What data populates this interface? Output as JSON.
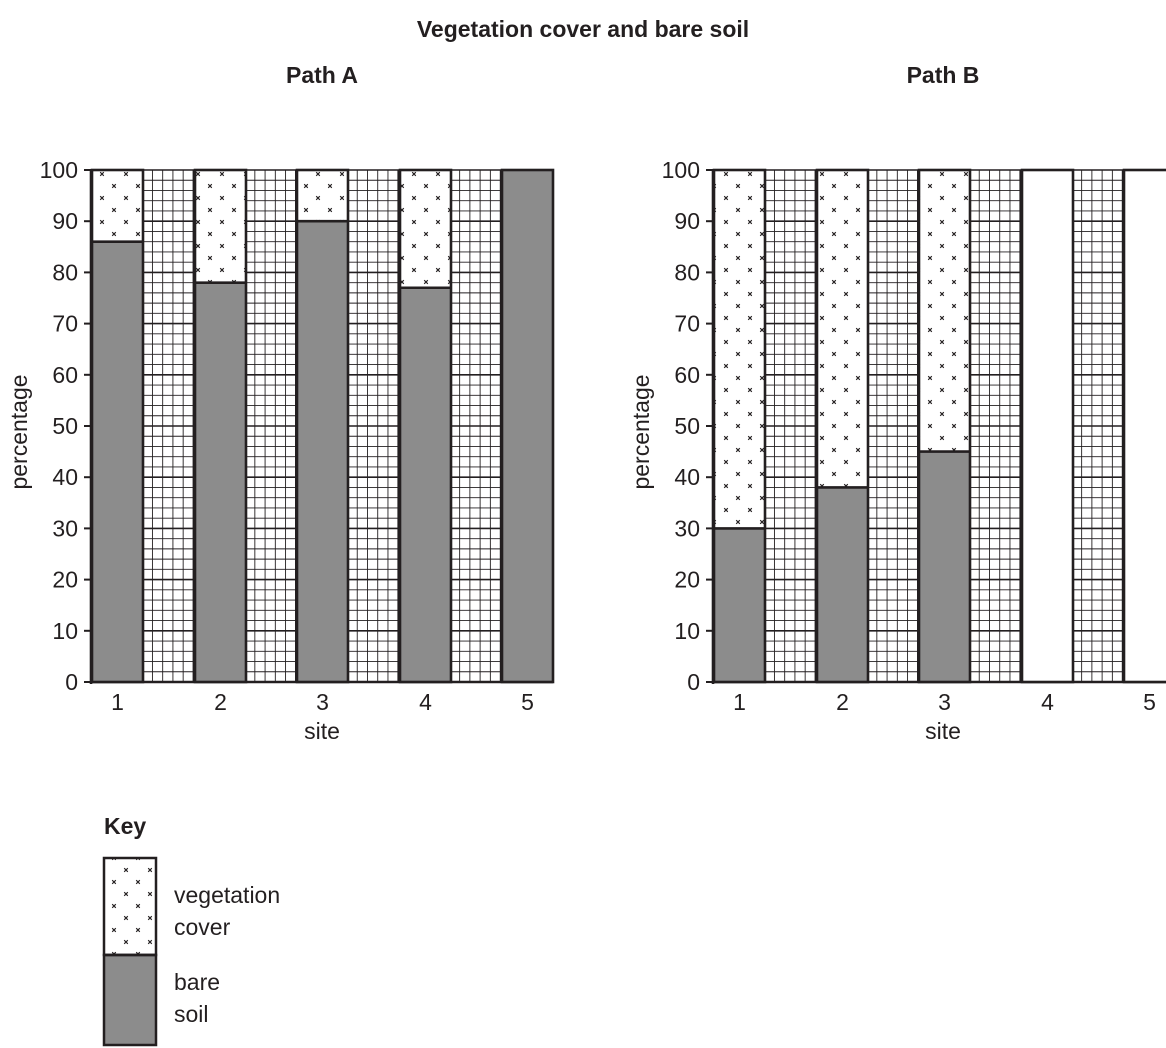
{
  "title": "Vegetation cover and bare soil",
  "colors": {
    "bare_soil": "#8c8c8c",
    "vegetation_cover": "#ffffff",
    "grid": "#231f20"
  },
  "chart_data": [
    {
      "type": "bar",
      "stacked": true,
      "title": "Path A",
      "xlabel": "site",
      "ylabel": "percentage",
      "categories": [
        "1",
        "2",
        "3",
        "4",
        "5"
      ],
      "ylim": [
        0,
        100
      ],
      "yticks": [
        0,
        10,
        20,
        30,
        40,
        50,
        60,
        70,
        80,
        90,
        100
      ],
      "grid": true,
      "series": [
        {
          "name": "bare soil",
          "values": [
            86,
            78,
            90,
            77,
            100
          ]
        },
        {
          "name": "vegetation cover",
          "values": [
            14,
            22,
            10,
            23,
            0
          ]
        }
      ]
    },
    {
      "type": "bar",
      "stacked": true,
      "title": "Path B",
      "xlabel": "site",
      "ylabel": "percentage",
      "categories": [
        "1",
        "2",
        "3",
        "4",
        "5"
      ],
      "ylim": [
        0,
        100
      ],
      "yticks": [
        0,
        10,
        20,
        30,
        40,
        50,
        60,
        70,
        80,
        90,
        100
      ],
      "grid": true,
      "series": [
        {
          "name": "bare soil",
          "values": [
            30,
            38,
            45,
            null,
            null
          ]
        },
        {
          "name": "vegetation cover",
          "values": [
            70,
            62,
            55,
            null,
            null
          ]
        }
      ]
    }
  ],
  "key": {
    "title": "Key",
    "items": [
      {
        "series": "vegetation cover",
        "lines": [
          "vegetation",
          "cover"
        ]
      },
      {
        "series": "bare soil",
        "lines": [
          "bare",
          "soil"
        ]
      }
    ]
  }
}
